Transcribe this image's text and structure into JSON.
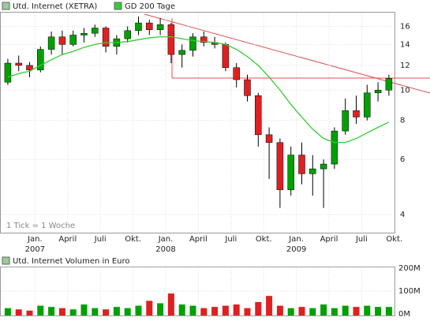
{
  "chart_data": {
    "type": "candlestick",
    "legend": [
      "Utd. Internet (XETRA)",
      "GD 200 Tage"
    ],
    "note": "1 Tick = 1 Woche",
    "categories": [
      null,
      null,
      null,
      "Jan.",
      null,
      null,
      "April",
      null,
      null,
      "Juli",
      null,
      null,
      "Okt.",
      null,
      null,
      "Jan.",
      null,
      null,
      "April",
      null,
      null,
      "Juli",
      null,
      null,
      "Okt.",
      null,
      null,
      "Jan.",
      null,
      null,
      "April",
      null,
      null,
      "Juli",
      null,
      null,
      "Okt."
    ],
    "year_labels": [
      null,
      null,
      null,
      "2007",
      null,
      null,
      null,
      null,
      null,
      null,
      null,
      null,
      null,
      null,
      null,
      "2008",
      null,
      null,
      null,
      null,
      null,
      null,
      null,
      null,
      null,
      null,
      null,
      "2009",
      null,
      null,
      null,
      null,
      null,
      null,
      null,
      null,
      null
    ],
    "open": [
      10.6,
      12.2,
      12.0,
      11.6,
      13.5,
      14.8,
      14.0,
      15.0,
      15.2,
      15.8,
      13.8,
      14.6,
      15.5,
      16.4,
      15.6,
      16.2,
      13.0,
      13.4,
      14.8,
      14.2,
      14.0,
      11.8,
      10.8,
      9.6,
      7.2,
      6.8,
      4.8,
      6.2,
      5.4,
      5.6,
      5.8,
      7.4,
      8.6,
      8.2,
      9.8,
      10.0,
      null
    ],
    "high": [
      12.6,
      12.9,
      12.3,
      13.8,
      15.4,
      15.5,
      15.5,
      15.8,
      16.2,
      16.0,
      15.0,
      16.0,
      17.2,
      16.8,
      17.0,
      16.4,
      14.0,
      15.2,
      15.4,
      14.8,
      14.2,
      12.2,
      11.2,
      9.8,
      7.6,
      7.0,
      6.6,
      6.8,
      6.2,
      6.0,
      7.6,
      9.4,
      9.6,
      10.4,
      10.6,
      11.2,
      null
    ],
    "low": [
      10.4,
      11.5,
      11.0,
      11.4,
      13.0,
      13.0,
      13.8,
      14.2,
      14.8,
      13.2,
      13.0,
      14.2,
      15.0,
      15.0,
      15.0,
      12.2,
      11.8,
      12.8,
      13.8,
      13.6,
      11.5,
      10.2,
      9.2,
      6.6,
      5.2,
      4.2,
      4.6,
      5.0,
      4.6,
      4.2,
      5.6,
      7.2,
      7.8,
      8.0,
      9.2,
      9.6,
      null
    ],
    "close": [
      12.2,
      12.0,
      11.6,
      13.5,
      14.8,
      14.0,
      15.0,
      15.2,
      15.8,
      13.8,
      14.6,
      15.5,
      16.4,
      15.6,
      16.2,
      13.0,
      13.4,
      14.8,
      14.2,
      14.0,
      11.8,
      10.8,
      9.6,
      7.2,
      6.8,
      4.8,
      6.2,
      5.4,
      5.6,
      5.8,
      7.4,
      8.6,
      8.2,
      9.8,
      10.0,
      10.9,
      null
    ],
    "ma": [
      11.0,
      11.3,
      11.5,
      12.0,
      12.5,
      13.0,
      13.3,
      13.7,
      14.0,
      14.2,
      14.2,
      14.3,
      14.5,
      14.7,
      14.8,
      14.8,
      14.6,
      14.4,
      14.3,
      14.2,
      14.0,
      13.5,
      12.8,
      12.0,
      11.0,
      10.0,
      9.0,
      8.2,
      7.5,
      7.0,
      6.8,
      6.8,
      7.0,
      7.3,
      7.6,
      7.9,
      null
    ],
    "up_color": "#00a000",
    "down_color": "#e02020",
    "ma_color": "#33cc33",
    "log_scale": true,
    "grid": true,
    "ylim": [
      3.5,
      17.8
    ],
    "yticks": [
      4,
      6,
      8,
      10,
      12,
      14,
      16
    ],
    "volume": {
      "title": "Utd. Internet Volumen in Euro",
      "values": [
        30,
        25,
        20,
        40,
        35,
        30,
        25,
        45,
        30,
        25,
        35,
        30,
        40,
        60,
        50,
        90,
        45,
        40,
        30,
        35,
        40,
        45,
        30,
        55,
        80,
        40,
        30,
        35,
        30,
        45,
        30,
        40,
        35,
        40,
        35,
        35,
        null
      ],
      "ylim": [
        0,
        200
      ],
      "yticks": [
        {
          "value": 0,
          "label": "0M"
        },
        {
          "value": 100,
          "label": "100M"
        },
        {
          "value": 200,
          "label": "200M"
        }
      ]
    }
  }
}
